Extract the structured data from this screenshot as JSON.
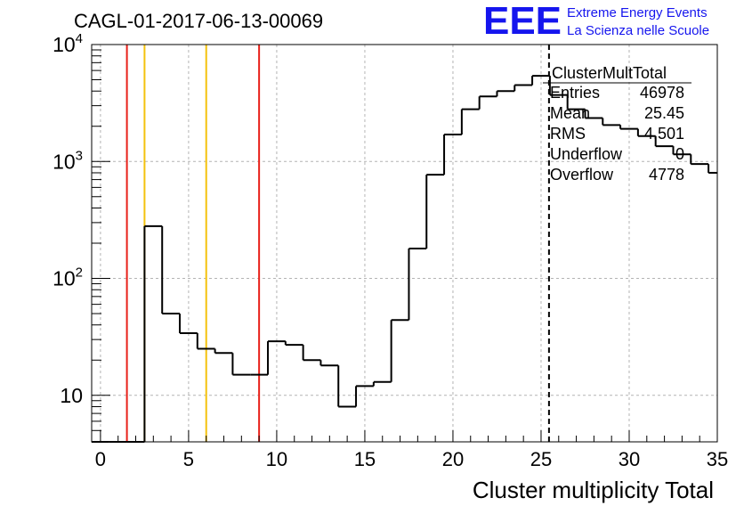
{
  "header": {
    "run_label": "CAGL-01-2017-06-13-00069",
    "logo_text": "EEE",
    "logo_line1": "Extreme Energy Events",
    "logo_line2": "La Scienza nelle Scuole"
  },
  "stats": {
    "name": "ClusterMultTotal",
    "rows": [
      {
        "label": "Entries",
        "value": "46978"
      },
      {
        "label": "Mean",
        "value": "25.45"
      },
      {
        "label": "RMS",
        "value": "4.501"
      },
      {
        "label": "Underflow",
        "value": "0"
      },
      {
        "label": "Overflow",
        "value": "4778"
      }
    ]
  },
  "chart_data": {
    "type": "histogram",
    "title": "",
    "xlabel": "Cluster multiplicity Total",
    "ylabel": "",
    "xlim": [
      -0.5,
      35
    ],
    "ylim": [
      4,
      10000
    ],
    "log_y": true,
    "grid": true,
    "x_ticks": [
      "0",
      "5",
      "10",
      "15",
      "20",
      "25",
      "30",
      "35"
    ],
    "y_ticks": [
      {
        "value": 10,
        "base": "10",
        "exp": ""
      },
      {
        "value": 100,
        "base": "10",
        "exp": "2"
      },
      {
        "value": 1000,
        "base": "10",
        "exp": "3"
      },
      {
        "value": 10000,
        "base": "10",
        "exp": "4"
      }
    ],
    "bin_edges": [
      -0.5,
      0.5,
      1.5,
      2.5,
      3.5,
      4.5,
      5.5,
      6.5,
      7.5,
      8.5,
      9.5,
      10.5,
      11.5,
      12.5,
      13.5,
      14.5,
      15.5,
      16.5,
      17.5,
      18.5,
      19.5,
      20.5,
      21.5,
      22.5,
      23.5,
      24.5,
      25.5,
      26.5,
      27.5,
      28.5,
      29.5,
      30.5,
      31.5,
      32.5,
      33.5,
      34.5,
      35.5
    ],
    "counts": [
      0,
      0,
      0,
      280,
      50,
      34,
      25,
      23,
      15,
      15,
      29,
      27,
      20,
      18,
      8,
      12,
      13,
      44,
      180,
      770,
      1700,
      2800,
      3600,
      4000,
      4500,
      5400,
      3700,
      2800,
      2350,
      2050,
      1900,
      1650,
      1350,
      1150,
      950,
      800
    ],
    "vlines": [
      {
        "x": 1.5,
        "color": "#e8211a"
      },
      {
        "x": 2.5,
        "color": "#f4c20d"
      },
      {
        "x": 6.0,
        "color": "#f4c20d"
      },
      {
        "x": 9.0,
        "color": "#e8211a"
      }
    ],
    "mean_line": {
      "x": 25.45,
      "style": "dashed",
      "color": "#000000"
    },
    "colors": {
      "hist": "#000000",
      "grid": "#b4b4b4",
      "logo": "#1515ee"
    }
  }
}
